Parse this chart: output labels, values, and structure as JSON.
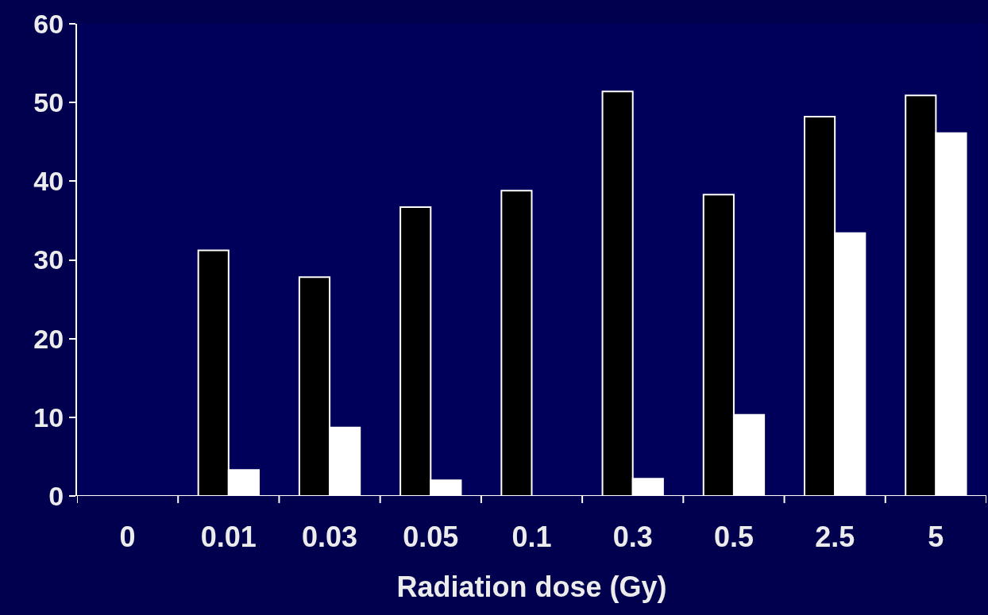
{
  "chart_data": {
    "type": "bar",
    "xlabel": "Radiation dose (Gy)",
    "categories": [
      "0",
      "0.01",
      "0.03",
      "0.05",
      "0.1",
      "0.3",
      "0.5",
      "2.5",
      "5"
    ],
    "series": [
      {
        "color": "#000000",
        "values": [
          null,
          31.2,
          27.8,
          36.7,
          38.8,
          51.4,
          38.3,
          48.2,
          50.9
        ]
      },
      {
        "color": "#ffffff",
        "values": [
          null,
          3.3,
          8.7,
          2.0,
          null,
          2.2,
          10.3,
          33.4,
          46.1
        ]
      }
    ],
    "ylim": [
      0,
      60
    ],
    "yticks": [
      0,
      10,
      20,
      30,
      40,
      50,
      60
    ],
    "grid": false
  }
}
